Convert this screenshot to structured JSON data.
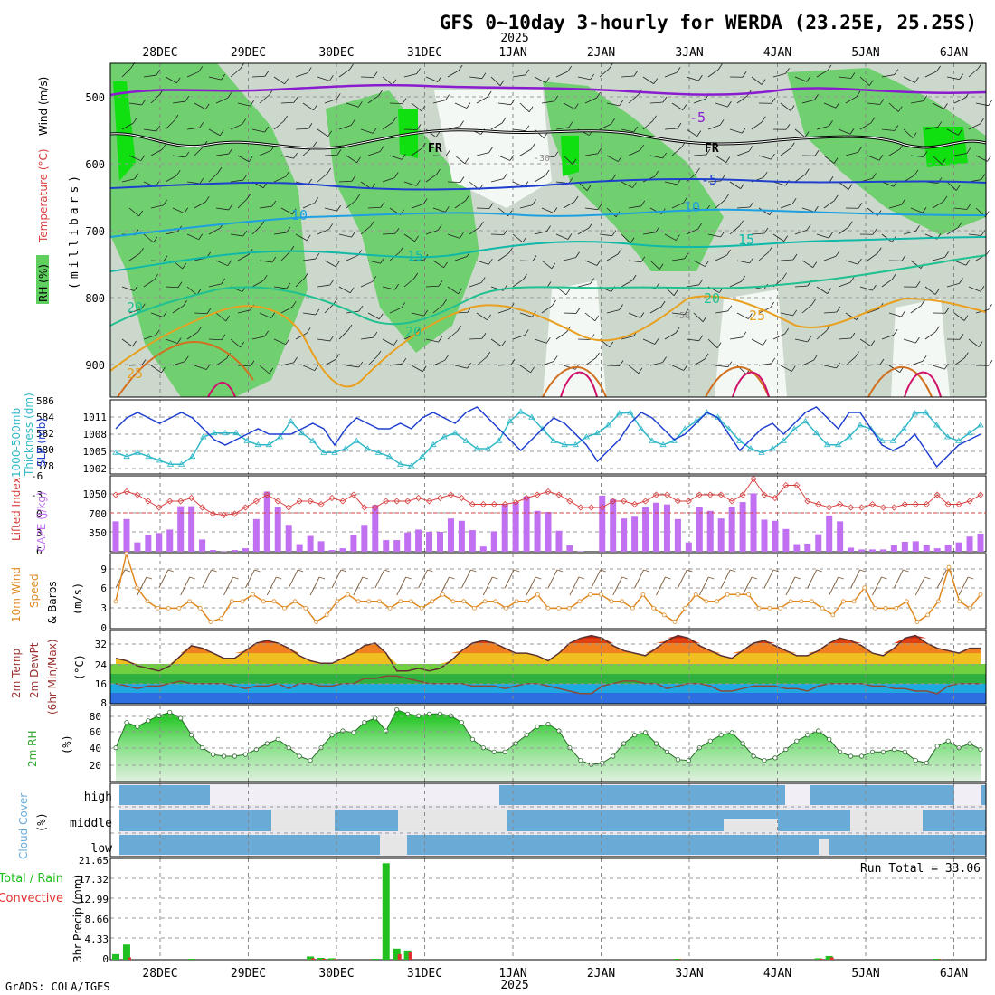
{
  "title": "GFS 0~10day 3-hourly for WERDA (23.25E, 25.25S)",
  "footer": "GrADS: COLA/IGES",
  "year_label": "2025",
  "dates": [
    "28DEC",
    "29DEC",
    "30DEC",
    "31DEC",
    "1JAN",
    "2JAN",
    "3JAN",
    "4JAN",
    "5JAN",
    "6JAN"
  ],
  "colors": {
    "rh_green": "#5fcf5f",
    "rh_light": "#c4d9c4",
    "slp": "#1f3fcf",
    "thickness": "#30b8c8",
    "cape": "#c070f0",
    "lifted": "#d84040",
    "wind": "#e08820",
    "temp": "#9b3030",
    "rh2m": "#30a830",
    "cloud": "#6aaad6",
    "precip_total": "#20c020",
    "precip_conv": "#e03030"
  },
  "panels": {
    "upper": {
      "label_rh": "RH (%)",
      "label_temp": "Temperature (°C)",
      "label_wind": "Wind (m/s)",
      "label_units": "(millibars)",
      "y_ticks": [
        "500",
        "600",
        "700",
        "800",
        "900"
      ],
      "contour_labels": [
        "-5",
        "FR",
        "FR",
        "-5",
        "10",
        "10",
        "15",
        "15",
        "20",
        "20",
        "20",
        "25",
        "25",
        "-30",
        "-50"
      ]
    },
    "slp": {
      "label_a": "1000-500mb",
      "label_b": "Thickness (dm)",
      "label_c": "SLP (mb)",
      "left_ticks": [
        "586",
        "584",
        "582",
        "580",
        "578"
      ],
      "right_ticks": [
        "1011",
        "1008",
        "1005",
        "1002"
      ]
    },
    "cape": {
      "label_a": "Lifted Index",
      "label_b": "CAPE (J/kg)",
      "left_ticks": [
        "-6",
        "-3",
        "0",
        "3",
        "6"
      ],
      "right_ticks": [
        "1050",
        "700",
        "350"
      ]
    },
    "wind": {
      "label_a": "10m Wind",
      "label_b": "Speed",
      "label_c": "& Barbs",
      "label_units": "(m/s)",
      "ticks": [
        "9",
        "6",
        "3",
        "0"
      ]
    },
    "temp": {
      "label_a": "2m Temp",
      "label_b": "2m DewPt",
      "label_c": "(6hr Min/Max)",
      "label_units": "(°C)",
      "ticks": [
        "32",
        "24",
        "16",
        "8"
      ]
    },
    "rh": {
      "label_a": "2m RH",
      "label_units": "(%)",
      "ticks": [
        "80",
        "60",
        "40",
        "20"
      ]
    },
    "cloud": {
      "label_a": "Cloud Cover",
      "label_units": "(%)",
      "levels": [
        "high",
        "middle",
        "low"
      ]
    },
    "precip": {
      "label_a": "Total / Rain",
      "label_b": "Convective",
      "label_c": "3hr Precip (mm)",
      "ticks": [
        "21.65",
        "17.32",
        "12.99",
        "8.66",
        "4.33",
        "0"
      ],
      "run_total": "Run Total = 33.06"
    }
  },
  "chart_data": [
    {
      "type": "line",
      "title": "SLP (mb)",
      "x": "3-hourly steps from 27DEC 15Z, 80 steps",
      "ylim": [
        1001,
        1014
      ],
      "values": [
        1009,
        1011,
        1012,
        1011,
        1010,
        1011,
        1012,
        1011,
        1009,
        1007,
        1006,
        1007,
        1008,
        1009,
        1008,
        1008,
        1008,
        1009,
        1010,
        1009,
        1006,
        1009,
        1011,
        1010,
        1009,
        1009,
        1010,
        1009,
        1011,
        1012,
        1011,
        1010,
        1012,
        1013,
        1011,
        1009,
        1007,
        1005,
        1007,
        1009,
        1011,
        1010,
        1008,
        1006,
        1003,
        1005,
        1007,
        1010,
        1012,
        1011,
        1009,
        1007,
        1008,
        1010,
        1012,
        1011,
        1008,
        1005,
        1007,
        1009,
        1010,
        1008,
        1010,
        1012,
        1013,
        1011,
        1009,
        1012,
        1012,
        1009,
        1006,
        1005,
        1006,
        1008,
        1005,
        1002,
        1004,
        1006,
        1007,
        1008
      ]
    },
    {
      "type": "line",
      "title": "1000-500mb Thickness (dm)",
      "ylim": [
        577,
        586
      ],
      "values": [
        579.5,
        579,
        579.5,
        579,
        578.5,
        578,
        578,
        579,
        581.5,
        582,
        582,
        582,
        581,
        580.5,
        580.5,
        581.5,
        583.5,
        582,
        581,
        579.5,
        579.5,
        580,
        581,
        580,
        579.5,
        579,
        578,
        577.8,
        579,
        580.5,
        581.5,
        582,
        581,
        580,
        580,
        581,
        583.5,
        584.7,
        584,
        582.5,
        581,
        580.5,
        580.5,
        581.5,
        582,
        583,
        584.5,
        584.6,
        582.5,
        581,
        580.5,
        581,
        582.5,
        583.5,
        584.6,
        584,
        582.5,
        581,
        580,
        579.5,
        580,
        581,
        582.5,
        583.5,
        582,
        580.5,
        580.5,
        581.5,
        583,
        582.5,
        581,
        581,
        582.5,
        584.5,
        584.6,
        583,
        581.5,
        581,
        582,
        583
      ]
    },
    {
      "type": "bar",
      "title": "CAPE (J/kg)",
      "ylim": [
        0,
        1300
      ],
      "values": [
        520,
        560,
        160,
        290,
        320,
        380,
        780,
        780,
        210,
        30,
        10,
        30,
        60,
        560,
        1030,
        760,
        460,
        130,
        270,
        180,
        30,
        60,
        280,
        460,
        800,
        200,
        200,
        330,
        380,
        340,
        340,
        570,
        530,
        370,
        90,
        350,
        820,
        850,
        950,
        700,
        680,
        360,
        110,
        10,
        0,
        960,
        900,
        570,
        600,
        760,
        840,
        810,
        560,
        160,
        770,
        700,
        570,
        770,
        850,
        1000,
        550,
        530,
        390,
        130,
        140,
        300,
        620,
        520,
        70,
        40,
        40,
        40,
        110,
        170,
        180,
        110,
        60,
        120,
        160,
        260,
        310
      ]
    },
    {
      "type": "line",
      "title": "Lifted Index",
      "ylim": [
        -6,
        6
      ],
      "values": [
        -3,
        -3.5,
        -3,
        -2,
        -1,
        -2,
        -2,
        -2.5,
        -1,
        0,
        0.2,
        0,
        -1,
        -2,
        -3,
        -2,
        -1,
        -2,
        -2,
        -1.5,
        -2.5,
        -2,
        -3,
        -1,
        -1,
        -2,
        -2,
        -2,
        -2.5,
        -2,
        -2.5,
        -3,
        -2.5,
        -1.5,
        -1.5,
        -1.5,
        -1.5,
        -1.8,
        -2.5,
        -3,
        -3.5,
        -3,
        -2,
        -1,
        -1,
        -1,
        -2,
        -2,
        -1.5,
        -2,
        -3,
        -3,
        -2,
        -2,
        -3,
        -3,
        -3,
        -2,
        -3,
        -5.5,
        -3,
        -2.5,
        -4.5,
        -4.5,
        -2,
        -1.5,
        -1,
        -1.5,
        -1,
        -1,
        -1.5,
        -1,
        -1,
        -1.5,
        -1.5,
        -1.5,
        -3,
        -1.5,
        -1.5,
        -2,
        -3
      ]
    },
    {
      "type": "line",
      "title": "10m Wind Speed (m/s)",
      "ylim": [
        0,
        11
      ],
      "values": [
        4,
        11,
        6,
        4,
        3,
        3,
        3,
        4,
        3,
        1,
        1.5,
        4,
        4,
        5,
        4,
        4,
        3,
        4,
        3,
        1,
        2,
        4,
        5,
        4,
        4,
        4,
        3,
        4,
        4,
        3,
        4,
        5,
        4,
        4,
        3,
        4,
        4,
        3,
        4,
        4,
        5,
        3,
        3,
        3,
        4,
        5,
        5,
        4,
        4,
        3,
        5,
        3,
        2,
        1,
        3,
        5,
        4,
        4,
        5,
        5,
        5,
        3,
        3,
        3,
        4,
        4,
        4,
        3,
        2,
        4,
        4,
        6,
        3,
        3,
        3,
        4,
        1,
        2,
        4,
        9,
        4,
        3,
        5
      ]
    },
    {
      "type": "area",
      "title": "2m Temp (°C)",
      "ylim": [
        7,
        36
      ],
      "values": [
        25,
        24,
        22,
        21,
        20,
        22,
        26,
        30,
        29,
        27,
        25,
        25,
        28,
        31,
        32,
        31,
        29,
        26,
        24,
        23,
        23,
        25,
        27,
        30,
        31,
        27,
        20,
        20,
        21,
        20,
        21,
        24,
        28,
        31,
        32,
        31,
        29,
        27,
        27,
        26,
        24,
        27,
        31,
        33,
        34,
        33,
        30,
        28,
        27,
        26,
        29,
        32,
        34,
        33,
        30,
        28,
        26,
        25,
        28,
        31,
        32,
        30,
        28,
        26,
        26,
        28,
        31,
        33,
        32,
        30,
        27,
        26,
        29,
        33,
        34,
        31,
        29,
        28,
        27,
        29,
        29
      ]
    },
    {
      "type": "line",
      "title": "2m DewPt (°C)",
      "ylim": [
        7,
        36
      ],
      "values": [
        15,
        14,
        13,
        14,
        14,
        15,
        16,
        15,
        15,
        15,
        15,
        14,
        13,
        14,
        14,
        15,
        13,
        15,
        15,
        14,
        14,
        15,
        15,
        17,
        17,
        18,
        18,
        17,
        16,
        15,
        15,
        15,
        15,
        14,
        14,
        14,
        13,
        14,
        15,
        15,
        14,
        13,
        12,
        11,
        11,
        14,
        15,
        16,
        16,
        15,
        15,
        13,
        14,
        15,
        15,
        14,
        12,
        12,
        13,
        14,
        14,
        14,
        13,
        13,
        12,
        14,
        15,
        15,
        15,
        15,
        14,
        14,
        13,
        13,
        12,
        12,
        11,
        14,
        15,
        15,
        15
      ]
    },
    {
      "type": "area",
      "title": "2m RH (%)",
      "ylim": [
        0,
        90
      ],
      "values": [
        40,
        70,
        65,
        72,
        78,
        82,
        75,
        55,
        40,
        32,
        30,
        30,
        32,
        38,
        45,
        50,
        40,
        30,
        25,
        40,
        55,
        60,
        58,
        70,
        75,
        60,
        85,
        80,
        78,
        80,
        80,
        78,
        70,
        50,
        40,
        35,
        35,
        45,
        55,
        65,
        68,
        60,
        40,
        25,
        20,
        22,
        30,
        45,
        55,
        58,
        45,
        35,
        26,
        25,
        40,
        48,
        55,
        58,
        45,
        30,
        25,
        28,
        38,
        48,
        55,
        60,
        50,
        35,
        30,
        30,
        35,
        35,
        38,
        35,
        25,
        22,
        42,
        48,
        40,
        45,
        38
      ]
    },
    {
      "type": "bar",
      "title": "3hr Precip (mm)",
      "ylim": [
        0,
        21.65
      ],
      "series": [
        {
          "name": "Total",
          "values": [
            1.2,
            3.3,
            0,
            0,
            0,
            0,
            0,
            0.2,
            0,
            0,
            0,
            0,
            0,
            0,
            0,
            0,
            0,
            0,
            0.7,
            0.4,
            0.3,
            0,
            0,
            0,
            0.2,
            21.0,
            2.4,
            2.0,
            0,
            0,
            0,
            0,
            0,
            0,
            0,
            0,
            0,
            0,
            0,
            0,
            0,
            0,
            0,
            0,
            0,
            0,
            0,
            0,
            0,
            0,
            0,
            0,
            0.2,
            0,
            0,
            0,
            0,
            0,
            0,
            0,
            0,
            0,
            0,
            0,
            0,
            0.3,
            0.8,
            0,
            0,
            0,
            0,
            0,
            0,
            0,
            0,
            0,
            0.2,
            0,
            0,
            0,
            0
          ]
        },
        {
          "name": "Convective",
          "values": [
            0,
            0.5,
            0,
            0,
            0,
            0,
            0,
            0,
            0,
            0,
            0,
            0,
            0,
            0,
            0,
            0,
            0,
            0,
            0.3,
            0.2,
            0.1,
            0,
            0,
            0,
            0,
            0,
            1.2,
            1.6,
            0,
            0,
            0,
            0,
            0,
            0,
            0,
            0,
            0,
            0,
            0,
            0,
            0,
            0,
            0,
            0,
            0,
            0,
            0,
            0,
            0,
            0,
            0,
            0,
            0.1,
            0,
            0,
            0,
            0,
            0,
            0,
            0,
            0,
            0,
            0,
            0,
            0,
            0.2,
            0.5,
            0,
            0,
            0,
            0,
            0,
            0,
            0,
            0,
            0,
            0.1,
            0,
            0,
            0,
            0
          ]
        }
      ]
    }
  ]
}
